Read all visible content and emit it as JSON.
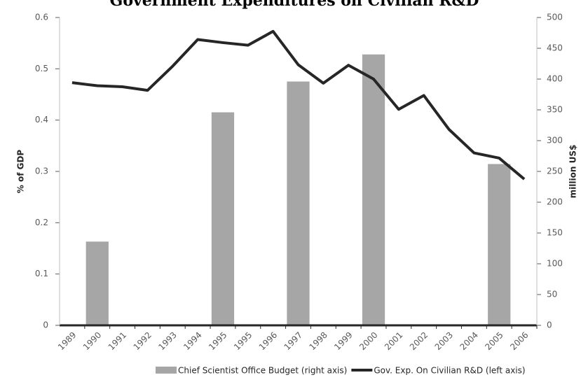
{
  "chart_data": {
    "type": "bar_line",
    "title": "Government Expenditures on Civilian R&D",
    "categories": [
      "1989",
      "1990",
      "1991",
      "1992",
      "1993",
      "1994",
      "1995",
      "1995",
      "1996",
      "1997",
      "1998",
      "1999",
      "2000",
      "2001",
      "2002",
      "2003",
      "2004",
      "2005",
      "2006"
    ],
    "series": [
      {
        "name": "Chief Scientist Office Budget (right axis)",
        "type": "bar",
        "axis": "y2",
        "color": "#a6a6a6",
        "values": [
          null,
          136,
          null,
          null,
          null,
          null,
          346,
          null,
          null,
          396,
          null,
          null,
          440,
          null,
          null,
          null,
          null,
          262,
          null
        ]
      },
      {
        "name": "Gov. Exp. On Civilian R&D (left axis)",
        "type": "line",
        "axis": "y",
        "color": "#262626",
        "values": [
          0.473,
          0.467,
          0.465,
          0.458,
          0.505,
          0.557,
          0.551,
          0.546,
          0.573,
          0.508,
          0.472,
          0.507,
          0.48,
          0.421,
          0.448,
          0.382,
          0.336,
          0.326,
          0.285
        ]
      }
    ],
    "ylabel": "% of GDP",
    "y2label": "million US$",
    "ylim": [
      0,
      0.6
    ],
    "yticks": [
      0,
      0.1,
      0.2,
      0.3,
      0.4,
      0.5,
      0.6
    ],
    "y2lim": [
      0,
      500
    ],
    "y2ticks": [
      0,
      50,
      100,
      150,
      200,
      250,
      300,
      350,
      400,
      450,
      500
    ],
    "grid": false,
    "legend": "bottom"
  }
}
